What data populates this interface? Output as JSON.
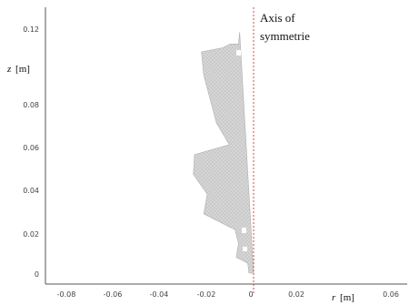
{
  "chart_data": {
    "type": "diagram",
    "x_ticks": [
      "-0.08",
      "-0.06",
      "-0.04",
      "-0.02",
      "0",
      "0.02",
      "0.06"
    ],
    "y_ticks": [
      "0",
      "0.02",
      "0.04",
      "0.06",
      "0.08",
      "0.12"
    ],
    "x_label_var": "r",
    "x_label_unit": "[m]",
    "y_label_var": "z",
    "y_label_unit": "[m]",
    "annotation": [
      "Axis of",
      "symmetrie"
    ],
    "mesh_shape_r": [
      -0.006,
      -0.0065,
      -0.01,
      -0.0135,
      -0.0225,
      -0.0215,
      -0.016,
      -0.0105,
      -0.0255,
      -0.026,
      -0.02,
      -0.0215,
      -0.008,
      -0.0065,
      -0.0075,
      -0.0025,
      -0.002,
      0
    ],
    "mesh_shape_z": [
      0.122,
      0.116,
      0.116,
      0.114,
      0.112,
      0.1,
      0.076,
      0.065,
      0.06,
      0.05,
      0.04,
      0.03,
      0.022,
      0.015,
      0.008,
      0.005,
      0.0,
      0.0
    ],
    "colors": {
      "axis_line": "#d44a4a",
      "mesh_fill": "#d6d6d6",
      "mesh_stroke": "#b6b6b6",
      "frame": "#555555"
    }
  }
}
